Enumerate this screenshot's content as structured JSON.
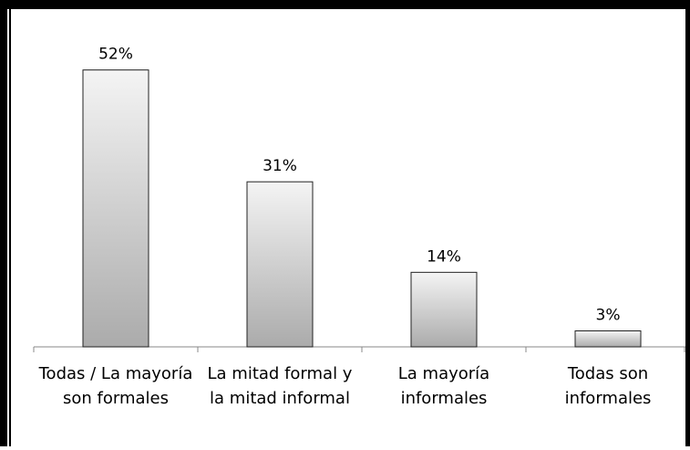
{
  "chart_data": {
    "type": "bar",
    "categories": [
      "Todas / La mayoría son formales",
      "La mitad formal y la mitad informal",
      "La mayoría informales",
      "Todas son informales"
    ],
    "values": [
      52,
      31,
      14,
      3
    ],
    "value_labels": [
      "52%",
      "31%",
      "14%",
      "3%"
    ],
    "color": "#c8c8c8",
    "ylim": [
      0,
      60
    ]
  }
}
